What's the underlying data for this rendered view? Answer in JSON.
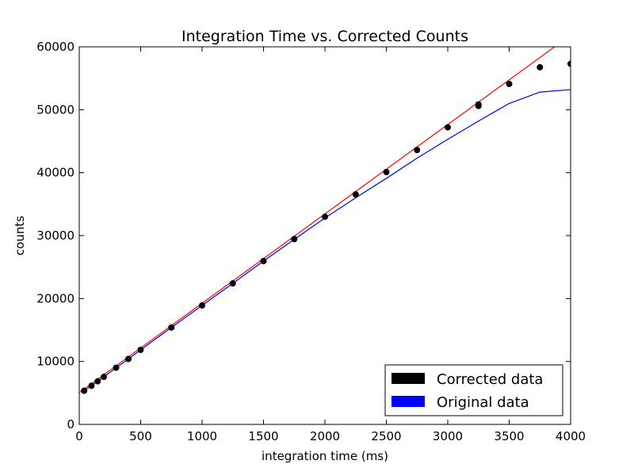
{
  "chart_data": {
    "type": "scatter",
    "title": "Integration Time vs. Corrected Counts",
    "xlabel": "integration time (ms)",
    "ylabel": "counts",
    "xlim": [
      0,
      4000
    ],
    "ylim": [
      0,
      60000
    ],
    "xticks": [
      0,
      500,
      1000,
      1500,
      2000,
      2500,
      3000,
      3500,
      4000
    ],
    "yticks": [
      0,
      10000,
      20000,
      30000,
      40000,
      50000,
      60000
    ],
    "grid": false,
    "legend_position": "bottom-right",
    "legend": [
      {
        "label": "Corrected data",
        "color": "#000000"
      },
      {
        "label": "Original data",
        "color": "#0000ff"
      }
    ],
    "series": [
      {
        "kind": "points",
        "color": "#000000",
        "points": [
          [
            40,
            5350
          ],
          [
            100,
            6150
          ],
          [
            150,
            6850
          ],
          [
            200,
            7550
          ],
          [
            300,
            9000
          ],
          [
            400,
            10400
          ],
          [
            500,
            11850
          ],
          [
            750,
            15400
          ],
          [
            1000,
            18900
          ],
          [
            1250,
            22400
          ],
          [
            1500,
            25950
          ],
          [
            1750,
            29450
          ],
          [
            2000,
            33000
          ],
          [
            2250,
            36550
          ],
          [
            2500,
            40100
          ],
          [
            2750,
            43600
          ],
          [
            3000,
            47200
          ],
          [
            3250,
            50600
          ],
          [
            3250,
            50850
          ],
          [
            3500,
            54100
          ],
          [
            3750,
            56750
          ],
          [
            4000,
            57300
          ]
        ]
      },
      {
        "kind": "line",
        "color": "#ff0000",
        "points": [
          [
            0,
            5050
          ],
          [
            4000,
            61850
          ]
        ]
      },
      {
        "kind": "line",
        "color": "#0000ff",
        "points": [
          [
            40,
            5350
          ],
          [
            100,
            6150
          ],
          [
            150,
            6850
          ],
          [
            200,
            7550
          ],
          [
            300,
            9000
          ],
          [
            400,
            10400
          ],
          [
            500,
            11850
          ],
          [
            750,
            15400
          ],
          [
            1000,
            18900
          ],
          [
            1250,
            22400
          ],
          [
            1500,
            25950
          ],
          [
            1750,
            29400
          ],
          [
            2000,
            32800
          ],
          [
            2250,
            36000
          ],
          [
            2500,
            39100
          ],
          [
            2750,
            42300
          ],
          [
            3000,
            45300
          ],
          [
            3250,
            48200
          ],
          [
            3500,
            51000
          ],
          [
            3750,
            52800
          ],
          [
            4000,
            53200
          ]
        ]
      }
    ]
  }
}
